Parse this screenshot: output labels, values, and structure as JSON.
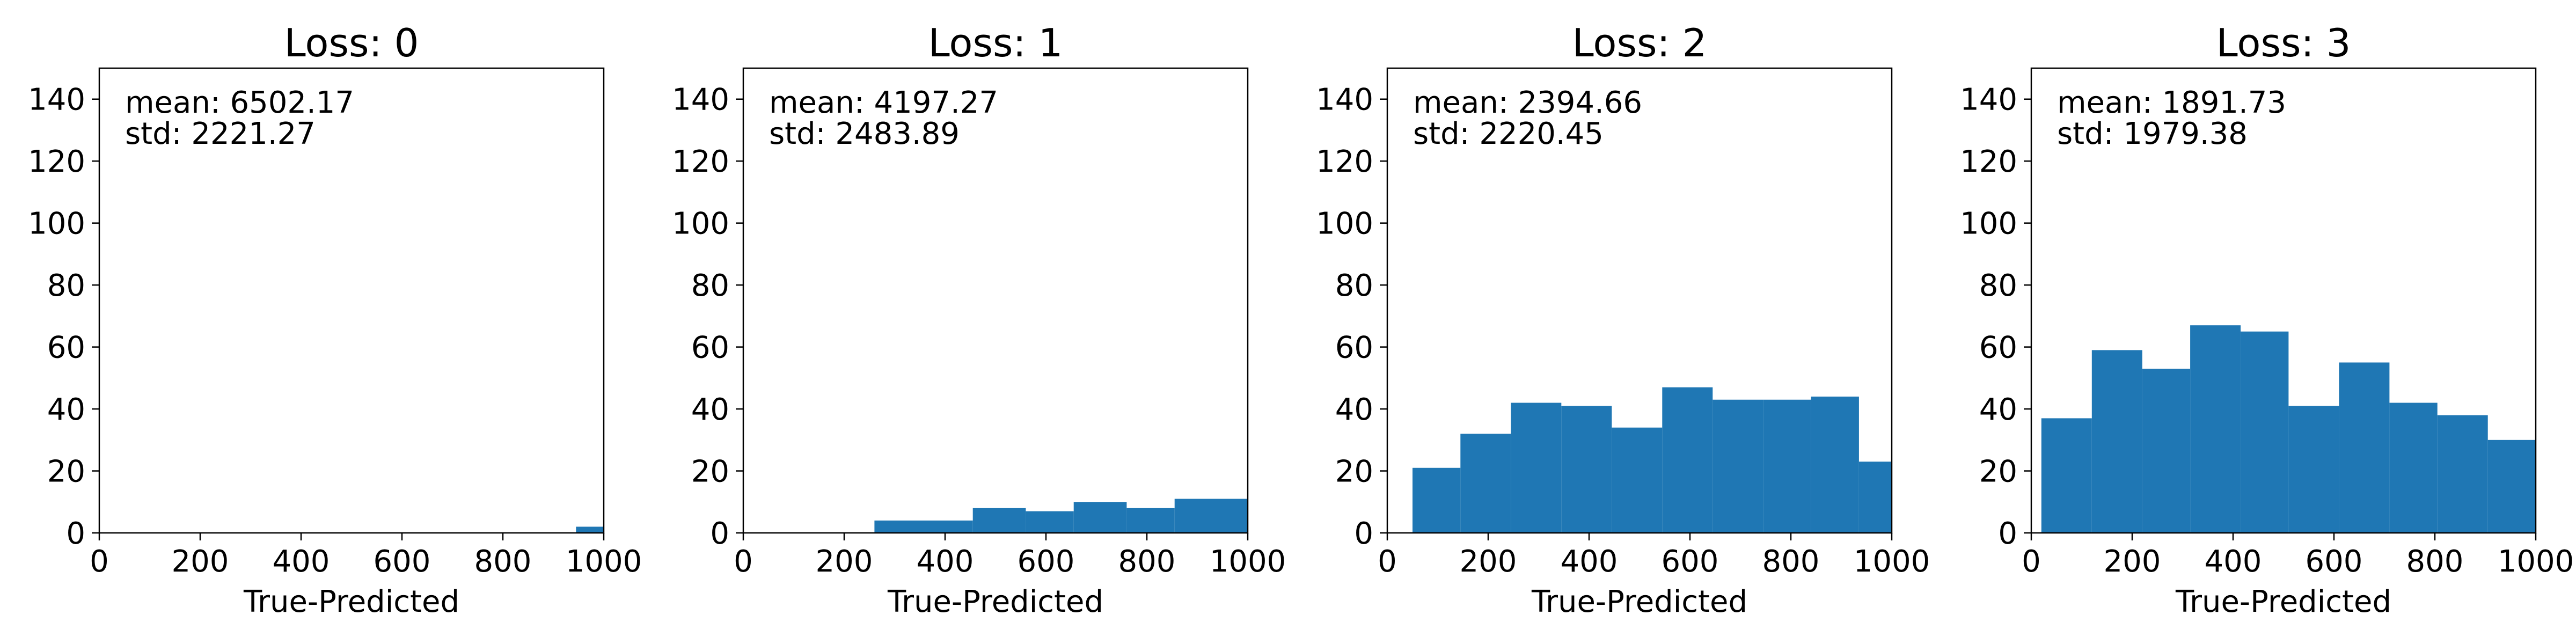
{
  "bar_color": "#1f77b4",
  "chart_data": [
    {
      "type": "bar",
      "title": "Loss: 0",
      "xlabel": "True-Predicted",
      "ylabel": "",
      "xlim": [
        0,
        1000
      ],
      "ylim": [
        0,
        150
      ],
      "xticks": [
        0,
        200,
        400,
        600,
        800,
        1000
      ],
      "yticks": [
        0,
        20,
        40,
        60,
        80,
        100,
        120,
        140
      ],
      "annotations": [
        "mean: 6502.17",
        "std: 2221.27"
      ],
      "grid": false,
      "bins": [
        {
          "x0": 945,
          "x1": 1000,
          "count": 2
        }
      ]
    },
    {
      "type": "bar",
      "title": "Loss: 1",
      "xlabel": "True-Predicted",
      "ylabel": "",
      "xlim": [
        0,
        1000
      ],
      "ylim": [
        0,
        150
      ],
      "xticks": [
        0,
        200,
        400,
        600,
        800,
        1000
      ],
      "yticks": [
        0,
        20,
        40,
        60,
        80,
        100,
        120,
        140
      ],
      "annotations": [
        "mean: 4197.27",
        "std: 2483.89"
      ],
      "grid": false,
      "bins": [
        {
          "x0": 260,
          "x1": 455,
          "count": 4
        },
        {
          "x0": 455,
          "x1": 560,
          "count": 8
        },
        {
          "x0": 560,
          "x1": 655,
          "count": 7
        },
        {
          "x0": 655,
          "x1": 760,
          "count": 10
        },
        {
          "x0": 760,
          "x1": 855,
          "count": 8
        },
        {
          "x0": 855,
          "x1": 1000,
          "count": 11
        }
      ]
    },
    {
      "type": "bar",
      "title": "Loss: 2",
      "xlabel": "True-Predicted",
      "ylabel": "",
      "xlim": [
        0,
        1000
      ],
      "ylim": [
        0,
        150
      ],
      "xticks": [
        0,
        200,
        400,
        600,
        800,
        1000
      ],
      "yticks": [
        0,
        20,
        40,
        60,
        80,
        100,
        120,
        140
      ],
      "annotations": [
        "mean: 2394.66",
        "std: 2220.45"
      ],
      "grid": false,
      "bins": [
        {
          "x0": 50,
          "x1": 145,
          "count": 21
        },
        {
          "x0": 145,
          "x1": 245,
          "count": 32
        },
        {
          "x0": 245,
          "x1": 345,
          "count": 42
        },
        {
          "x0": 345,
          "x1": 445,
          "count": 41
        },
        {
          "x0": 445,
          "x1": 545,
          "count": 34
        },
        {
          "x0": 545,
          "x1": 645,
          "count": 47
        },
        {
          "x0": 645,
          "x1": 745,
          "count": 43
        },
        {
          "x0": 745,
          "x1": 840,
          "count": 43
        },
        {
          "x0": 840,
          "x1": 935,
          "count": 44
        },
        {
          "x0": 935,
          "x1": 1000,
          "count": 23
        }
      ]
    },
    {
      "type": "bar",
      "title": "Loss: 3",
      "xlabel": "True-Predicted",
      "ylabel": "",
      "xlim": [
        0,
        1000
      ],
      "ylim": [
        0,
        150
      ],
      "xticks": [
        0,
        200,
        400,
        600,
        800,
        1000
      ],
      "yticks": [
        0,
        20,
        40,
        60,
        80,
        100,
        120,
        140
      ],
      "annotations": [
        "mean: 1891.73",
        "std: 1979.38"
      ],
      "grid": false,
      "bins": [
        {
          "x0": 20,
          "x1": 120,
          "count": 37
        },
        {
          "x0": 120,
          "x1": 220,
          "count": 59
        },
        {
          "x0": 220,
          "x1": 315,
          "count": 53
        },
        {
          "x0": 315,
          "x1": 415,
          "count": 67
        },
        {
          "x0": 415,
          "x1": 510,
          "count": 65
        },
        {
          "x0": 510,
          "x1": 610,
          "count": 41
        },
        {
          "x0": 610,
          "x1": 710,
          "count": 55
        },
        {
          "x0": 710,
          "x1": 805,
          "count": 42
        },
        {
          "x0": 805,
          "x1": 905,
          "count": 38
        },
        {
          "x0": 905,
          "x1": 1000,
          "count": 30
        }
      ]
    }
  ]
}
